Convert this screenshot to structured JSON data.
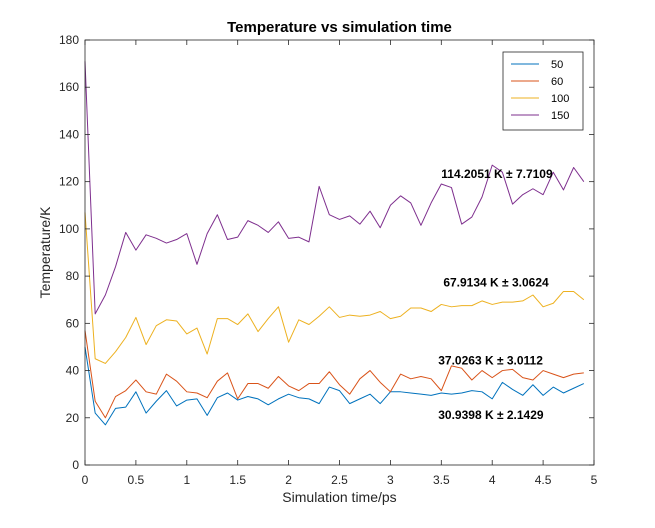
{
  "chart_data": {
    "type": "line",
    "title": "Temperature vs simulation time",
    "xlabel": "Simulation time/ps",
    "ylabel": "Temperature/K",
    "xlim": [
      0,
      5
    ],
    "ylim": [
      0,
      180
    ],
    "xticks": [
      0,
      0.5,
      1,
      1.5,
      2,
      2.5,
      3,
      3.5,
      4,
      4.5,
      5
    ],
    "xtick_labels": [
      "0",
      "0.5",
      "1",
      "1.5",
      "2",
      "2.5",
      "3",
      "3.5",
      "4",
      "4.5",
      "5"
    ],
    "yticks": [
      0,
      20,
      40,
      60,
      80,
      100,
      120,
      140,
      160,
      180
    ],
    "ytick_labels": [
      "0",
      "20",
      "40",
      "60",
      "80",
      "100",
      "120",
      "140",
      "160",
      "180"
    ],
    "grid": false,
    "legend_position": "top-right",
    "x": [
      0,
      0.1,
      0.2,
      0.3,
      0.4,
      0.5,
      0.6,
      0.7,
      0.8,
      0.9,
      1.0,
      1.1,
      1.2,
      1.3,
      1.4,
      1.5,
      1.6,
      1.7,
      1.8,
      1.9,
      2.0,
      2.1,
      2.2,
      2.3,
      2.4,
      2.5,
      2.6,
      2.7,
      2.8,
      2.9,
      3.0,
      3.1,
      3.2,
      3.3,
      3.4,
      3.5,
      3.6,
      3.7,
      3.8,
      3.9,
      4.0,
      4.1,
      4.2,
      4.3,
      4.4,
      4.5,
      4.6,
      4.7,
      4.8,
      4.9
    ],
    "series": [
      {
        "name": "50",
        "color": "#0072BD",
        "values": [
          50,
          22,
          17,
          24,
          24.5,
          31,
          22,
          27,
          31.5,
          25,
          27.5,
          28,
          21,
          28.5,
          30.5,
          27.5,
          29,
          28,
          25.5,
          28,
          30,
          28.5,
          28,
          26,
          33,
          31.5,
          26,
          28,
          30,
          26,
          31,
          31,
          30.5,
          30,
          29.5,
          30.5,
          30,
          30.5,
          31.5,
          31,
          28,
          35,
          32,
          29.5,
          34,
          29.5,
          33,
          30.5,
          32.5,
          34.5
        ]
      },
      {
        "name": "60",
        "color": "#D95319",
        "values": [
          57,
          27,
          20,
          29,
          31.5,
          36,
          31,
          30,
          38.5,
          35.5,
          31,
          30.5,
          28.5,
          35.5,
          39,
          28,
          34.5,
          34.5,
          32.5,
          37.5,
          33.5,
          31.5,
          34.5,
          34.5,
          39.5,
          34,
          30,
          36.5,
          40,
          35,
          31,
          38.5,
          36.5,
          37.5,
          36.5,
          31.5,
          42,
          41,
          36,
          40,
          37,
          40,
          40.5,
          37,
          36,
          40,
          38.5,
          37,
          38.5,
          39
        ]
      },
      {
        "name": "100",
        "color": "#EDB120",
        "values": [
          107,
          45,
          43,
          48,
          54,
          62.5,
          51,
          59,
          61.5,
          61,
          55.5,
          58,
          47,
          62,
          62,
          59.5,
          64,
          56.5,
          62,
          67,
          52,
          61.5,
          59.5,
          63,
          67,
          62.5,
          63.5,
          63,
          63.5,
          65,
          62,
          63,
          66.5,
          66.5,
          65,
          68,
          67,
          67.5,
          67.5,
          69.5,
          68,
          69,
          69,
          69.5,
          72,
          67,
          68.5,
          73.5,
          73.5,
          70
        ]
      },
      {
        "name": "150",
        "color": "#7E2F8E",
        "values": [
          171,
          64,
          72,
          84,
          98.5,
          91,
          97.5,
          96,
          94,
          95.5,
          98,
          85,
          98,
          106,
          95.5,
          96.5,
          103.5,
          101.5,
          98.5,
          103,
          96,
          96.5,
          94.5,
          118,
          106,
          104,
          105.5,
          102,
          107.5,
          100.5,
          110,
          114,
          111,
          101.5,
          111,
          119,
          117.5,
          102,
          105,
          113.5,
          127,
          124,
          110.5,
          114.5,
          117,
          114.5,
          124,
          116.5,
          126,
          120
        ]
      }
    ],
    "annotations": [
      {
        "text": "114.2051 K ± 7.7109",
        "x": 3.5,
        "y": 121.5
      },
      {
        "text": "67.9134 K ± 3.0624",
        "x": 3.52,
        "y": 75.5
      },
      {
        "text": "37.0263 K ± 3.0112",
        "x": 3.47,
        "y": 42.5
      },
      {
        "text": "30.9398 K ± 2.1429",
        "x": 3.47,
        "y": 19.5
      }
    ]
  }
}
